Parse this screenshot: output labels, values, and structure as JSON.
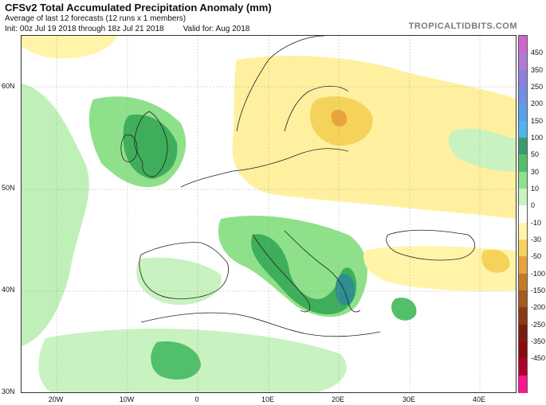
{
  "header": {
    "title": "CFSv2 Total Accumulated Precipitation Anomaly (mm)",
    "subtitle": "Average of last 12 forecasts (12 runs x 1 members)",
    "init": "Init: 00z Jul 19 2018 through 18z Jul 21 2018",
    "valid": "Valid for: Aug 2018",
    "brand": "TROPICALTIDBITS.COM"
  },
  "axes": {
    "lat_labels": [
      "60N",
      "50N",
      "40N",
      "30N"
    ],
    "lon_labels": [
      "20W",
      "10W",
      "0",
      "10E",
      "20E",
      "30E",
      "40E"
    ]
  },
  "colorbar": {
    "labels": [
      "450",
      "350",
      "250",
      "200",
      "150",
      "100",
      "50",
      "30",
      "10",
      "0",
      "-10",
      "-30",
      "-50",
      "-100",
      "-150",
      "-200",
      "-250",
      "-350",
      "-450"
    ],
    "colors": [
      "#cc66cc",
      "#b07ad8",
      "#8f7fe0",
      "#6f8fe6",
      "#5aa0ea",
      "#4fb3f0",
      "#3b9a6e",
      "#52c06a",
      "#8fe08a",
      "#c8f2c0",
      "#ffffff",
      "#fff4a8",
      "#f5d35a",
      "#e8a43a",
      "#c47a28",
      "#a85a1e",
      "#8b3a12",
      "#7a1d10",
      "#8b0a0a",
      "#b0002a",
      "#ff1493"
    ]
  }
}
